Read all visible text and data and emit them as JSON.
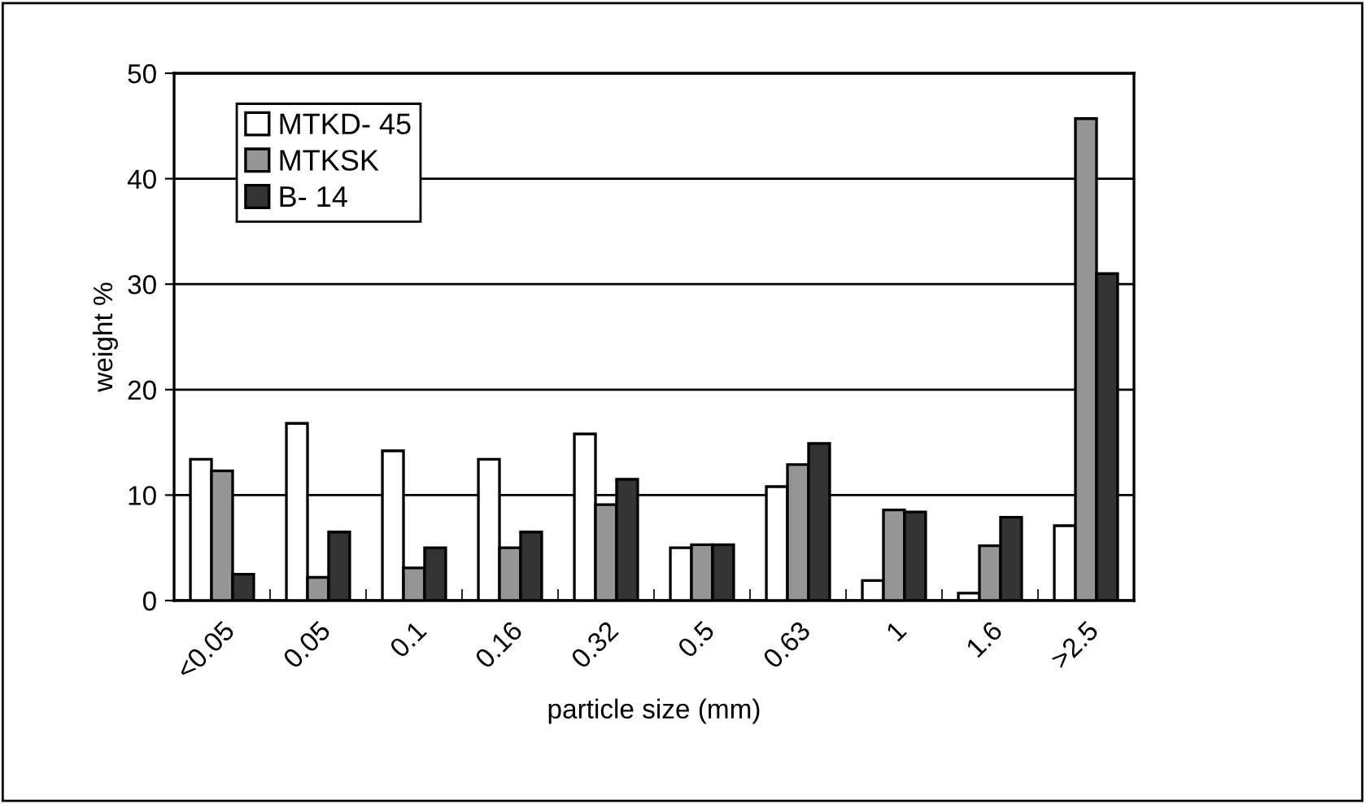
{
  "chart_data": {
    "type": "bar",
    "xlabel": "particle size (mm)",
    "ylabel": "weight %",
    "categories": [
      "<0.05",
      "0.05",
      "0.1",
      "0.16",
      "0.32",
      "0.5",
      "0.63",
      "1",
      "1.6",
      ">2.5"
    ],
    "series": [
      {
        "name": "MTKD- 45",
        "color": "#ffffff",
        "values": [
          13.4,
          16.8,
          14.2,
          13.4,
          15.8,
          5.0,
          10.8,
          1.9,
          0.7,
          7.1
        ]
      },
      {
        "name": "MTKSK",
        "color": "#969696",
        "values": [
          12.3,
          2.2,
          3.1,
          5.0,
          9.1,
          5.3,
          12.9,
          8.6,
          5.2,
          45.7
        ]
      },
      {
        "name": "B- 14",
        "color": "#333333",
        "values": [
          2.5,
          6.5,
          5.0,
          6.5,
          11.5,
          5.3,
          14.9,
          8.4,
          7.9,
          31.0
        ]
      }
    ],
    "ylim": [
      0,
      50
    ],
    "yticks": [
      0,
      10,
      20,
      30,
      40,
      50
    ],
    "grid": "y",
    "legend": "top left"
  }
}
